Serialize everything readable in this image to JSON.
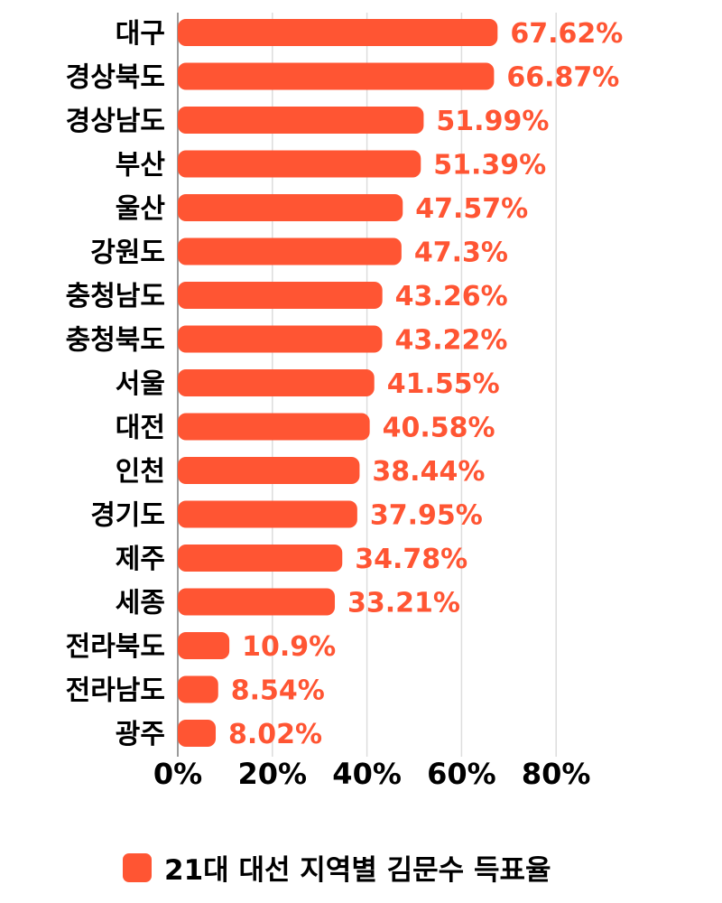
{
  "chart_data": {
    "type": "bar",
    "orientation": "horizontal",
    "categories": [
      "대구",
      "경상북도",
      "경상남도",
      "부산",
      "울산",
      "강원도",
      "충청남도",
      "충청북도",
      "서울",
      "대전",
      "인천",
      "경기도",
      "제주",
      "세종",
      "전라북도",
      "전라남도",
      "광주"
    ],
    "series": [
      {
        "name": "21대 대선 지역별 김문수 득표율",
        "values": [
          67.62,
          66.87,
          51.99,
          51.39,
          47.57,
          47.3,
          43.26,
          43.22,
          41.55,
          40.58,
          38.44,
          37.95,
          34.78,
          33.21,
          10.9,
          8.54,
          8.02
        ],
        "labels": [
          "67.62%",
          "66.87%",
          "51.99%",
          "51.39%",
          "47.57%",
          "47.3%",
          "43.26%",
          "43.22%",
          "41.55%",
          "40.58%",
          "38.44%",
          "37.95%",
          "34.78%",
          "33.21%",
          "10.9%",
          "8.54%",
          "8.02%"
        ],
        "color": "#FF5533"
      }
    ],
    "xlim": [
      0,
      80
    ],
    "xticks": [
      0,
      20,
      40,
      60,
      80
    ],
    "xtick_labels": [
      "0%",
      "20%",
      "40%",
      "60%",
      "80%"
    ],
    "grid": "vertical",
    "gridline_color": "#dddddd",
    "legend_position": "bottom",
    "label_color": "#FF5533"
  }
}
